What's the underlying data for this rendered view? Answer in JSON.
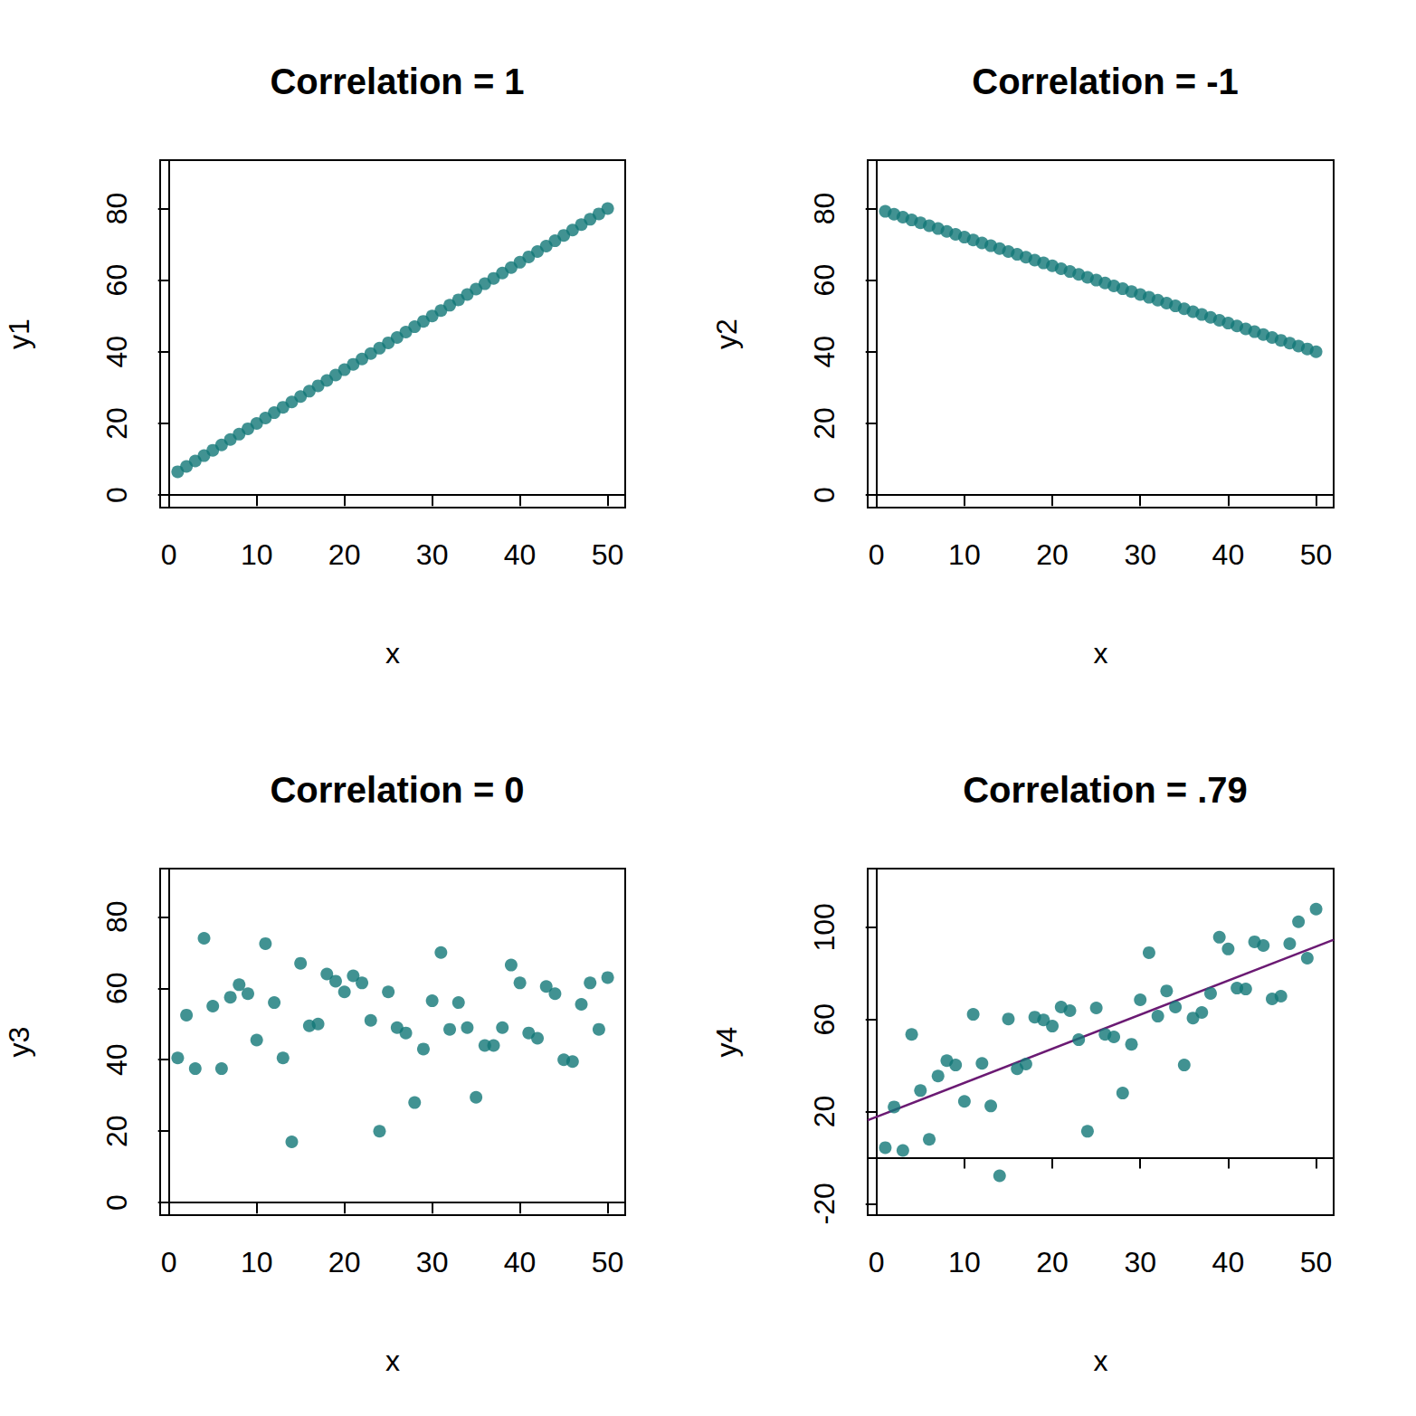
{
  "chart_data": [
    {
      "type": "scatter",
      "title": "Correlation = 1",
      "x_label": "x",
      "y_label": "y1",
      "x": [
        1,
        2,
        3,
        4,
        5,
        6,
        7,
        8,
        9,
        10,
        11,
        12,
        13,
        14,
        15,
        16,
        17,
        18,
        19,
        20,
        21,
        22,
        23,
        24,
        25,
        26,
        27,
        28,
        29,
        30,
        31,
        32,
        33,
        34,
        35,
        36,
        37,
        38,
        39,
        40,
        41,
        42,
        43,
        44,
        45,
        46,
        47,
        48,
        49,
        50
      ],
      "values": [
        6.5,
        8,
        9.5,
        11,
        12.5,
        14,
        15.5,
        17,
        18.5,
        20,
        21.5,
        23,
        24.5,
        26,
        27.5,
        29,
        30.5,
        32,
        33.5,
        35,
        36.5,
        38,
        39.5,
        41,
        42.5,
        44,
        45.5,
        47,
        48.5,
        50,
        51.5,
        53,
        54.5,
        56,
        57.5,
        59,
        60.5,
        62,
        63.5,
        65,
        66.5,
        68,
        69.5,
        71,
        72.5,
        74,
        75.5,
        77,
        78.5,
        80
      ],
      "color": "#117777",
      "marker": "circle",
      "xlim": [
        -1,
        52
      ],
      "xticks": [
        0,
        10,
        20,
        30,
        40,
        50
      ],
      "ylim": [
        -3.5,
        93.5
      ],
      "yticks": [
        0,
        20,
        40,
        60,
        80
      ],
      "grid": false
    },
    {
      "type": "scatter",
      "title": "Correlation = -1",
      "x_label": "x",
      "y_label": "y2",
      "x": [
        1,
        2,
        3,
        4,
        5,
        6,
        7,
        8,
        9,
        10,
        11,
        12,
        13,
        14,
        15,
        16,
        17,
        18,
        19,
        20,
        21,
        22,
        23,
        24,
        25,
        26,
        27,
        28,
        29,
        30,
        31,
        32,
        33,
        34,
        35,
        36,
        37,
        38,
        39,
        40,
        41,
        42,
        43,
        44,
        45,
        46,
        47,
        48,
        49,
        50
      ],
      "values": [
        79.2,
        78.4,
        77.6,
        76.8,
        76,
        75.2,
        74.4,
        73.6,
        72.8,
        72,
        71.2,
        70.4,
        69.6,
        68.8,
        68,
        67.2,
        66.4,
        65.6,
        64.8,
        64,
        63.2,
        62.4,
        61.6,
        60.8,
        60,
        59.2,
        58.4,
        57.6,
        56.8,
        56,
        55.2,
        54.4,
        53.6,
        52.8,
        52,
        51.2,
        50.4,
        49.6,
        48.8,
        48,
        47.2,
        46.4,
        45.6,
        44.8,
        44,
        43.2,
        42.4,
        41.6,
        40.8,
        40
      ],
      "color": "#117777",
      "marker": "circle",
      "xlim": [
        -1,
        52
      ],
      "xticks": [
        0,
        10,
        20,
        30,
        40,
        50
      ],
      "ylim": [
        -3.5,
        93.5
      ],
      "yticks": [
        0,
        20,
        40,
        60,
        80
      ],
      "grid": false
    },
    {
      "type": "scatter",
      "title": "Correlation = 0",
      "x_label": "x",
      "y_label": "y3",
      "x": [
        1,
        2,
        3,
        4,
        5,
        6,
        7,
        8,
        9,
        10,
        11,
        12,
        13,
        14,
        15,
        16,
        17,
        18,
        19,
        20,
        21,
        22,
        23,
        24,
        25,
        26,
        27,
        28,
        29,
        30,
        31,
        32,
        33,
        34,
        35,
        36,
        37,
        38,
        39,
        40,
        41,
        42,
        43,
        44,
        45,
        46,
        47,
        48,
        49,
        50
      ],
      "values": [
        40.5,
        52.5,
        37.5,
        74,
        55,
        37.5,
        57.5,
        61,
        58.5,
        45.5,
        72.5,
        56,
        40.5,
        17,
        67,
        49.5,
        50,
        64,
        62,
        59,
        63.5,
        61.5,
        51,
        20,
        59,
        49,
        47.5,
        28,
        43,
        56.5,
        70,
        48.5,
        56,
        49,
        29.5,
        44,
        44,
        49,
        66.5,
        61.5,
        47.5,
        46,
        60.5,
        58.5,
        40,
        39.5,
        55.5,
        61.5,
        48.5,
        63
      ],
      "color": "#117777",
      "marker": "circle",
      "xlim": [
        -1,
        52
      ],
      "xticks": [
        0,
        10,
        20,
        30,
        40,
        50
      ],
      "ylim": [
        -3.5,
        93.5
      ],
      "yticks": [
        0,
        20,
        40,
        60,
        80
      ],
      "grid": false
    },
    {
      "type": "scatter",
      "title": "Correlation = .79",
      "x_label": "x",
      "y_label": "y4",
      "x": [
        1,
        2,
        3,
        4,
        5,
        6,
        7,
        8,
        9,
        10,
        11,
        12,
        13,
        14,
        15,
        16,
        17,
        18,
        19,
        20,
        21,
        22,
        23,
        24,
        25,
        26,
        27,
        28,
        29,
        30,
        31,
        32,
        33,
        34,
        35,
        36,
        37,
        38,
        39,
        40,
        41,
        42,
        43,
        44,
        45,
        46,
        47,
        48,
        49,
        50
      ],
      "values": [
        4.3,
        22,
        3.1,
        53.5,
        29.1,
        7.9,
        35.4,
        42.1,
        40.2,
        24.4,
        62.2,
        40.9,
        22.4,
        -7.9,
        60.2,
        38.6,
        40.6,
        61,
        59.8,
        57.1,
        65.4,
        63.8,
        51.2,
        11.4,
        65,
        53.5,
        52.4,
        28,
        49.2,
        68.5,
        89,
        61.4,
        72.4,
        65.4,
        40.2,
        60.6,
        63,
        71.3,
        95.7,
        90.6,
        73.6,
        73.2,
        93.7,
        92.1,
        68.9,
        70.1,
        92.9,
        102.4,
        86.6,
        107.9
      ],
      "color": "#117777",
      "marker": "circle",
      "fit_line": {
        "x": [
          -1,
          52
        ],
        "y": [
          16.2,
          94.6
        ],
        "color": "#6b1a73"
      },
      "xlim": [
        -1,
        52
      ],
      "xticks": [
        0,
        10,
        20,
        30,
        40,
        50
      ],
      "ylim": [
        -25,
        125.5
      ],
      "yticks": [
        -20,
        20,
        60,
        100
      ],
      "grid": false
    }
  ]
}
